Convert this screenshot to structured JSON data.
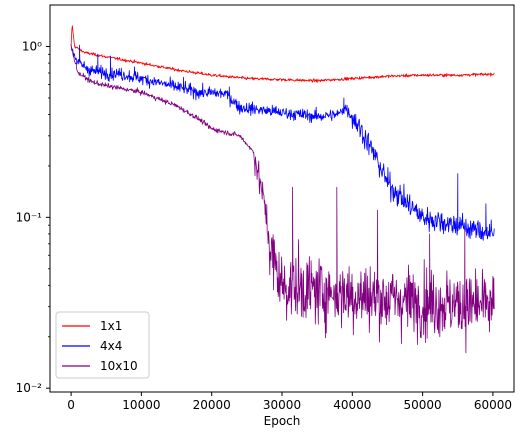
{
  "chart_data": {
    "type": "line",
    "title": "",
    "xlabel": "Epoch",
    "ylabel": "",
    "xlim": [
      -3000,
      63000
    ],
    "ylim": [
      0.0095,
      1.75
    ],
    "yscale": "log",
    "grid": false,
    "legend_position": "lower-left",
    "x_ticks": [
      0,
      10000,
      20000,
      30000,
      40000,
      50000,
      60000
    ],
    "x_tick_labels": [
      "0",
      "10000",
      "20000",
      "30000",
      "40000",
      "50000",
      "60000"
    ],
    "y_ticks": [
      0.01,
      0.1,
      1
    ],
    "y_tick_labels": [
      "10⁻²",
      "10⁻¹",
      "10⁰"
    ],
    "series": [
      {
        "name": "1x1",
        "color": "#ff0000",
        "anchors": [
          [
            0,
            1.0
          ],
          [
            150,
            1.35
          ],
          [
            500,
            1.0
          ],
          [
            2000,
            0.92
          ],
          [
            5000,
            0.87
          ],
          [
            10000,
            0.8
          ],
          [
            15000,
            0.73
          ],
          [
            20000,
            0.68
          ],
          [
            25000,
            0.65
          ],
          [
            30000,
            0.64
          ],
          [
            35000,
            0.63
          ],
          [
            40000,
            0.65
          ],
          [
            45000,
            0.67
          ],
          [
            50000,
            0.68
          ],
          [
            55000,
            0.68
          ],
          [
            60000,
            0.69
          ]
        ],
        "noise": 0.012,
        "spikes": []
      },
      {
        "name": "4x4",
        "color": "#0000ff",
        "anchors": [
          [
            0,
            1.0
          ],
          [
            1000,
            0.8
          ],
          [
            3000,
            0.72
          ],
          [
            5000,
            0.7
          ],
          [
            7000,
            0.69
          ],
          [
            10000,
            0.65
          ],
          [
            15000,
            0.58
          ],
          [
            18000,
            0.54
          ],
          [
            22000,
            0.53
          ],
          [
            24000,
            0.44
          ],
          [
            26000,
            0.43
          ],
          [
            30000,
            0.41
          ],
          [
            35000,
            0.39
          ],
          [
            38000,
            0.4
          ],
          [
            39000,
            0.44
          ],
          [
            41000,
            0.34
          ],
          [
            43000,
            0.24
          ],
          [
            45000,
            0.16
          ],
          [
            47000,
            0.13
          ],
          [
            50000,
            0.1
          ],
          [
            55000,
            0.09
          ],
          [
            60000,
            0.08
          ]
        ],
        "noise": 0.05,
        "spikes": [
          [
            1200,
            1.02
          ],
          [
            3800,
            0.9
          ],
          [
            5600,
            0.88
          ],
          [
            9000,
            0.76
          ],
          [
            16000,
            0.66
          ],
          [
            22500,
            0.58
          ],
          [
            38800,
            0.5
          ],
          [
            55000,
            0.18
          ],
          [
            59000,
            0.12
          ]
        ]
      },
      {
        "name": "10x10",
        "color": "#800080",
        "anchors": [
          [
            0,
            1.0
          ],
          [
            1000,
            0.7
          ],
          [
            3000,
            0.62
          ],
          [
            5000,
            0.59
          ],
          [
            10000,
            0.54
          ],
          [
            15000,
            0.45
          ],
          [
            18000,
            0.38
          ],
          [
            20000,
            0.33
          ],
          [
            24000,
            0.3
          ],
          [
            26000,
            0.24
          ],
          [
            27500,
            0.12
          ],
          [
            28500,
            0.06
          ],
          [
            30000,
            0.04
          ],
          [
            40000,
            0.035
          ],
          [
            50000,
            0.032
          ],
          [
            60000,
            0.03
          ]
        ],
        "noise": 0.28,
        "spikes": [
          [
            31500,
            0.15
          ],
          [
            37800,
            0.15
          ],
          [
            43600,
            0.11
          ],
          [
            51000,
            0.08
          ],
          [
            56000,
            0.085
          ]
        ]
      }
    ]
  }
}
